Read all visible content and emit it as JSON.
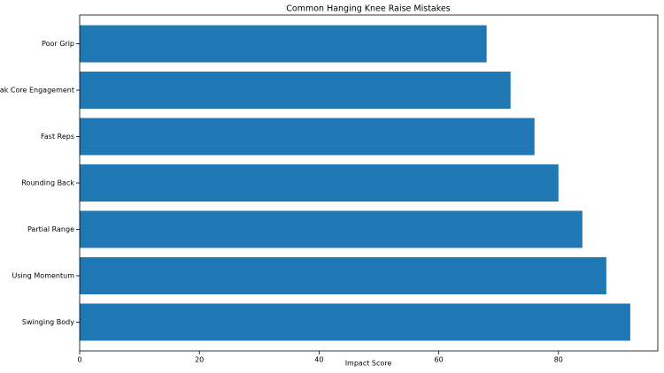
{
  "chart_data": {
    "type": "barh",
    "title": "Common Hanging Knee Raise Mistakes",
    "xlabel": "Impact Score",
    "categories": [
      "Swinging Body",
      "Using Momentum",
      "Partial Range",
      "Rounding Back",
      "Fast Reps",
      "Weak Core Engagement",
      "Poor Grip"
    ],
    "values": [
      92,
      88,
      84,
      80,
      76,
      72,
      68
    ],
    "color": "#1f77b4",
    "xlim": [
      0,
      96.6
    ],
    "xticks": [
      0,
      20,
      40,
      60,
      80
    ],
    "grid": false
  }
}
